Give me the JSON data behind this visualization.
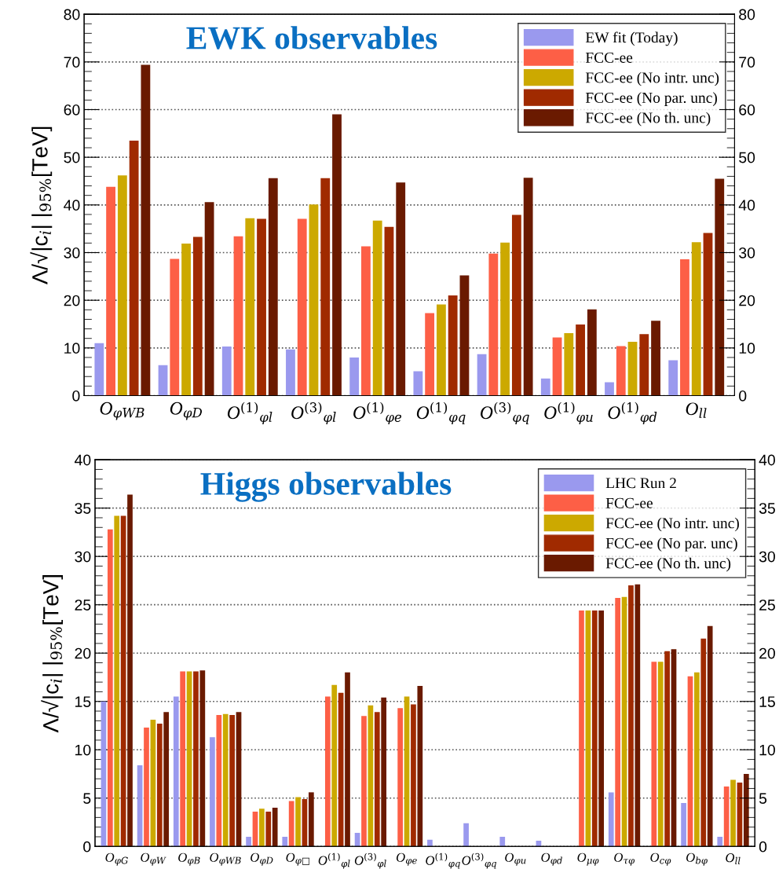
{
  "chart_data": [
    {
      "type": "bar",
      "title": "EWK observables",
      "ylabel": "Λ/√|c$_{i}$| |$_{95%}$[TeV]",
      "categories": [
        "O$_{φWB}$",
        "O$_{φD}$",
        "O$^{(1)}$$_{φl}$",
        "O$^{(3)}$$_{φl}$",
        "O$^{(1)}$$_{φe}$",
        "O$^{(1)}$$_{φq}$",
        "O$^{(3)}$$_{φq}$",
        "O$^{(1)}$$_{φu}$",
        "O$^{(1)}$$_{φd}$",
        "O$_{ll}$"
      ],
      "series": [
        {
          "name": "EW fit (Today)",
          "color": "#9a99ee",
          "values": [
            11.0,
            6.4,
            10.3,
            9.7,
            8.0,
            5.1,
            8.7,
            3.6,
            2.8,
            7.4
          ]
        },
        {
          "name": "FCC-ee",
          "color": "#fd5f46",
          "values": [
            43.8,
            28.7,
            33.4,
            37.1,
            31.3,
            17.3,
            29.8,
            12.2,
            10.4,
            28.6
          ]
        },
        {
          "name": "FCC-ee (No intr. unc)",
          "color": "#cca900",
          "values": [
            46.2,
            31.9,
            37.2,
            40.1,
            36.7,
            19.1,
            32.1,
            13.1,
            11.3,
            32.2
          ]
        },
        {
          "name": "FCC-ee (No par. unc)",
          "color": "#a02a00",
          "values": [
            53.5,
            33.3,
            37.1,
            45.6,
            35.4,
            21.0,
            37.9,
            14.9,
            12.9,
            34.1
          ]
        },
        {
          "name": "FCC-ee (No th. unc)",
          "color": "#6a1a00",
          "values": [
            69.4,
            40.6,
            45.6,
            59.0,
            44.7,
            25.2,
            45.7,
            18.1,
            15.7,
            45.5
          ]
        }
      ],
      "ylim": [
        0,
        80
      ],
      "yticks": [
        0,
        10,
        20,
        30,
        40,
        50,
        60,
        70,
        80
      ],
      "y2lim": [
        0,
        80
      ],
      "y2ticks": [
        0,
        10,
        20,
        30,
        40,
        50,
        60,
        70,
        80
      ],
      "grid": "y",
      "legend": "top right"
    },
    {
      "type": "bar",
      "title": "Higgs observables",
      "ylabel": "Λ/√|c$_{i}$| |$_{95%}$[TeV]",
      "categories": [
        "O$_{φG}$",
        "O$_{φW}$",
        "O$_{φB}$",
        "O$_{φWB}$",
        "O$_{φD}$",
        "O$_{φ□}$",
        "O$^{(1)}$$_{φl}$",
        "O$^{(3)}$$_{φl}$",
        "O$_{φe}$",
        "O$^{(1)}$$_{φq}$",
        "O$^{(3)}$$_{φq}$",
        "O$_{φu}$",
        "O$_{φd}$",
        "O$_{μφ}$",
        "O$_{τφ}$",
        "O$_{cφ}$",
        "O$_{bφ}$",
        "O$_{ll}$"
      ],
      "series": [
        {
          "name": "LHC Run 2",
          "color": "#9a99ee",
          "values": [
            15.0,
            8.4,
            15.5,
            11.3,
            1.0,
            1.0,
            null,
            1.4,
            null,
            0.7,
            2.4,
            1.0,
            0.6,
            null,
            5.6,
            null,
            4.5,
            1.0
          ]
        },
        {
          "name": "FCC-ee",
          "color": "#fd5f46",
          "values": [
            32.8,
            12.3,
            18.1,
            13.6,
            3.6,
            4.7,
            15.5,
            13.5,
            14.3,
            null,
            null,
            null,
            null,
            24.4,
            25.7,
            19.1,
            17.6,
            6.2
          ]
        },
        {
          "name": "FCC-ee (No intr. unc)",
          "color": "#cca900",
          "values": [
            34.2,
            13.1,
            18.1,
            13.7,
            3.9,
            5.1,
            16.7,
            14.6,
            15.5,
            null,
            null,
            null,
            null,
            24.4,
            25.8,
            19.1,
            18.0,
            6.9
          ]
        },
        {
          "name": "FCC-ee (No par. unc)",
          "color": "#a02a00",
          "values": [
            34.2,
            12.7,
            18.1,
            13.6,
            3.6,
            4.9,
            15.9,
            13.9,
            14.7,
            null,
            null,
            null,
            null,
            24.4,
            27.0,
            20.2,
            21.5,
            6.6
          ]
        },
        {
          "name": "FCC-ee (No th. unc)",
          "color": "#6a1a00",
          "values": [
            36.4,
            13.9,
            18.2,
            13.9,
            4.0,
            5.6,
            18.0,
            15.4,
            16.6,
            null,
            null,
            null,
            null,
            24.4,
            27.1,
            20.4,
            22.8,
            7.5
          ]
        }
      ],
      "ylim": [
        0,
        40
      ],
      "yticks": [
        0,
        5,
        10,
        15,
        20,
        25,
        30,
        35,
        40
      ],
      "y2lim": [
        0,
        40
      ],
      "y2ticks": [
        0,
        5,
        10,
        15,
        20,
        25,
        30,
        35,
        40
      ],
      "grid": "y",
      "legend": "top right"
    }
  ]
}
